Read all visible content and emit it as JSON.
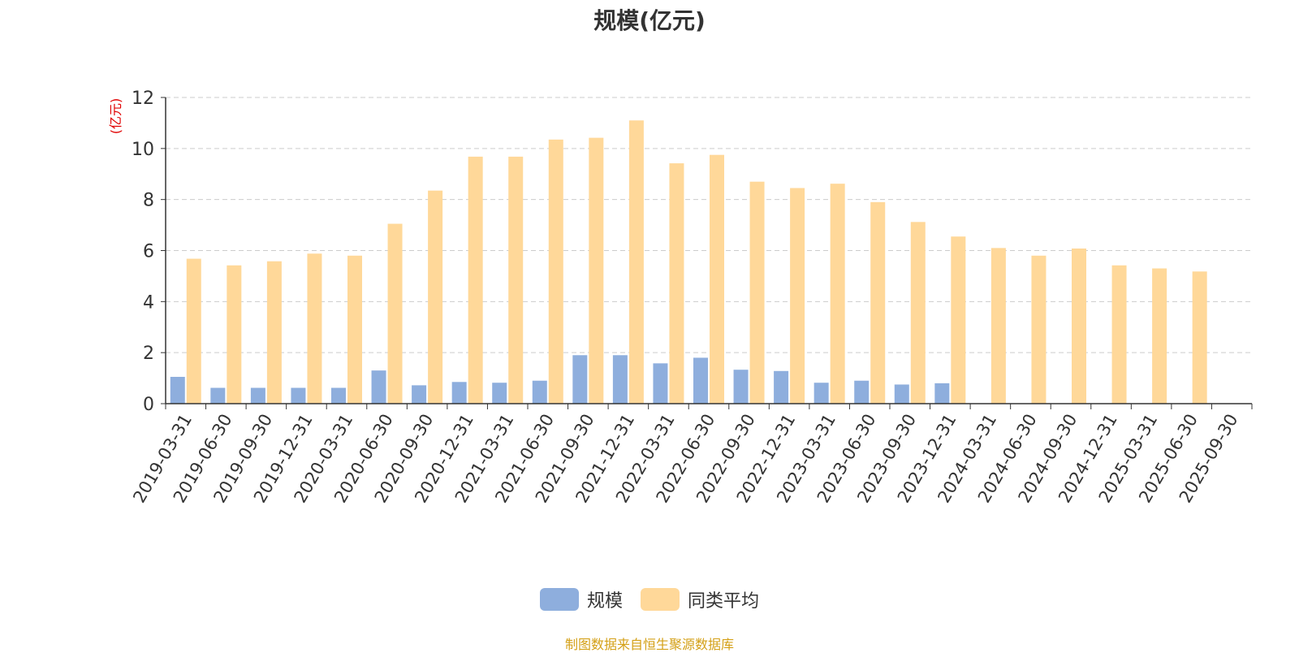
{
  "title": "规模(亿元)",
  "source_note": "制图数据来自恒生聚源数据库",
  "colors": {
    "series_1": "#8eaedd",
    "series_2": "#ffd899",
    "axis_unit": "#e00000",
    "grid": "#cccccc",
    "axis": "#333333",
    "source": "#d4a017"
  },
  "chart_data": {
    "type": "bar",
    "title": "规模(亿元)",
    "ylabel": "(亿元)",
    "xlabel": "",
    "ylim": [
      0,
      12
    ],
    "yticks": [
      "0",
      "2",
      "4",
      "6",
      "8",
      "10",
      "12"
    ],
    "grid": true,
    "legend_position": "bottom-center",
    "categories": [
      "2019-03-31",
      "2019-06-30",
      "2019-09-30",
      "2019-12-31",
      "2020-03-31",
      "2020-06-30",
      "2020-09-30",
      "2020-12-31",
      "2021-03-31",
      "2021-06-30",
      "2021-09-30",
      "2021-12-31",
      "2022-03-31",
      "2022-06-30",
      "2022-09-30",
      "2022-12-31",
      "2023-03-31",
      "2023-06-30",
      "2023-09-30",
      "2023-12-31",
      "2024-03-31",
      "2024-06-30",
      "2024-09-30",
      "2024-12-31",
      "2025-03-31",
      "2025-06-30",
      "2025-09-30"
    ],
    "series": [
      {
        "name": "规模",
        "color": "#8eaedd",
        "values": [
          1.05,
          0.62,
          0.62,
          0.62,
          0.62,
          1.3,
          0.72,
          0.85,
          0.82,
          0.9,
          1.9,
          1.9,
          1.58,
          1.8,
          1.33,
          1.28,
          0.82,
          0.9,
          0.75,
          0.8,
          null,
          null,
          null,
          null,
          null,
          null,
          null
        ]
      },
      {
        "name": "同类平均",
        "color": "#ffd899",
        "values": [
          5.68,
          5.42,
          5.58,
          5.88,
          5.8,
          7.05,
          8.35,
          9.68,
          9.68,
          10.35,
          10.42,
          11.1,
          9.42,
          9.75,
          8.7,
          8.45,
          8.62,
          7.9,
          7.12,
          6.55,
          6.1,
          5.8,
          6.08,
          5.42,
          5.3,
          5.18,
          null
        ]
      }
    ]
  }
}
